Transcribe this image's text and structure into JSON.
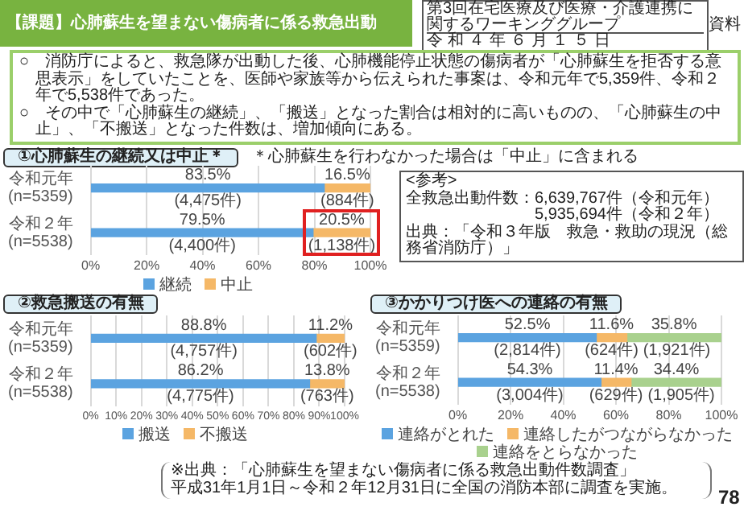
{
  "chart_data": [
    {
      "type": "other",
      "title": "【課題】心肺蘇生を望まない傷病者に係る救急出動",
      "annotations": [
        "第3回在宅医療及び医療・介護連携に関するワーキンググループ",
        "令和４年６月１５日",
        "資料",
        "○　消防庁によると、救急隊が出動した後、心肺機能停止状態の傷病者が「心肺蘇生を拒否する意思表示」をしていたことを、医師や家族等から伝えられた事案は、令和元年で5,359件、令和２年で5,538件であった。",
        "○　その中で「心肺蘇生の継続」、「搬送」となった割合は相対的に高いものの、「心肺蘇生の中止」、「不搬送」となった件数は、増加傾向にある。",
        "<参考>",
        "全救急出動件数：6,639,767件（令和元年）",
        "5,935,694件（令和２年）",
        "出典：「令和３年版　救急・救助の現況（総務省消防庁）」",
        "※出典：「心肺蘇生を望まない傷病者に係る救急出動件数調査」",
        "平成31年1月1日～令和２年12月31日に全国の消防本部に調査を実施。",
        "78"
      ]
    },
    {
      "type": "bar",
      "orientation": "horizontal",
      "stacked": true,
      "title": "①心肺蘇生の継続又は中止＊",
      "subtitle": "＊心肺蘇生を行わなかった場合は「中止」に含まれる",
      "categories": [
        "令和元年\n(n=5359)",
        "令和２年\n(n=5538)"
      ],
      "series": [
        {
          "name": "継続",
          "color": "#5ba3e0",
          "values": [
            83.5,
            79.5
          ],
          "value_labels": [
            "83.5%\n(4,475件)",
            "79.5%\n(4,400件)"
          ]
        },
        {
          "name": "中止",
          "color": "#f5b867",
          "values": [
            16.5,
            20.5
          ],
          "value_labels": [
            "16.5%\n(884件)",
            "20.5%\n(1,138件)"
          ]
        }
      ],
      "xlim": [
        0,
        100
      ],
      "xticks": [
        {
          "value": 0,
          "label": "0%"
        },
        {
          "value": 20,
          "label": "20%"
        },
        {
          "value": 40,
          "label": "40%"
        },
        {
          "value": 60,
          "label": "60%"
        },
        {
          "value": 80,
          "label": "80%"
        },
        {
          "value": 100,
          "label": "100%"
        }
      ],
      "grid": "x",
      "legend": "bottom"
    },
    {
      "type": "bar",
      "orientation": "horizontal",
      "stacked": true,
      "title": "②救急搬送の有無",
      "categories": [
        "令和元年\n(n=5359)",
        "令和２年\n(n=5538)"
      ],
      "series": [
        {
          "name": "搬送",
          "color": "#5ba3e0",
          "values": [
            88.8,
            86.2
          ],
          "value_labels": [
            "88.8%\n(4,757件)",
            "86.2%\n(4,775件)"
          ]
        },
        {
          "name": "不搬送",
          "color": "#f5b867",
          "values": [
            11.2,
            13.8
          ],
          "value_labels": [
            "11.2%\n(602件)",
            "13.8%\n(763件)"
          ]
        }
      ],
      "xlim": [
        0,
        100
      ],
      "xticks": [
        {
          "value": 0,
          "label": "0%"
        },
        {
          "value": 10,
          "label": "10%"
        },
        {
          "value": 20,
          "label": "20%"
        },
        {
          "value": 30,
          "label": "30%"
        },
        {
          "value": 40,
          "label": "40%"
        },
        {
          "value": 50,
          "label": "50%"
        },
        {
          "value": 60,
          "label": "60%"
        },
        {
          "value": 70,
          "label": "70%"
        },
        {
          "value": 80,
          "label": "80%"
        },
        {
          "value": 90,
          "label": "90%"
        },
        {
          "value": 100,
          "label": "100%"
        }
      ],
      "grid": "x",
      "legend": "bottom"
    },
    {
      "type": "bar",
      "orientation": "horizontal",
      "stacked": true,
      "title": "③かかりつけ医への連絡の有無",
      "categories": [
        "令和元年\n(n=5359)",
        "令和２年\n(n=5538)"
      ],
      "series": [
        {
          "name": "連絡がとれた",
          "color": "#5ba3e0",
          "values": [
            52.5,
            54.3
          ],
          "value_labels": [
            "52.5%\n(2,814件)",
            "54.3%\n(3,004件)"
          ]
        },
        {
          "name": "連絡したがつながらなかった",
          "color": "#f5b867",
          "values": [
            11.6,
            11.4
          ],
          "value_labels": [
            "11.6%\n(624件)",
            "11.4%\n(629件)"
          ]
        },
        {
          "name": "連絡をとらなかった",
          "color": "#a9d18e",
          "values": [
            35.8,
            34.4
          ],
          "value_labels": [
            "35.8%\n(1,921件)",
            "34.4%\n(1,905件)"
          ]
        }
      ],
      "xlim": [
        0,
        100
      ],
      "xticks": [
        {
          "value": 0,
          "label": "0%"
        },
        {
          "value": 20,
          "label": "20%"
        },
        {
          "value": 40,
          "label": "40%"
        },
        {
          "value": 60,
          "label": "60%"
        },
        {
          "value": 80,
          "label": "80%"
        },
        {
          "value": 100,
          "label": "100%"
        }
      ],
      "grid": "x",
      "legend": "bottom"
    }
  ]
}
